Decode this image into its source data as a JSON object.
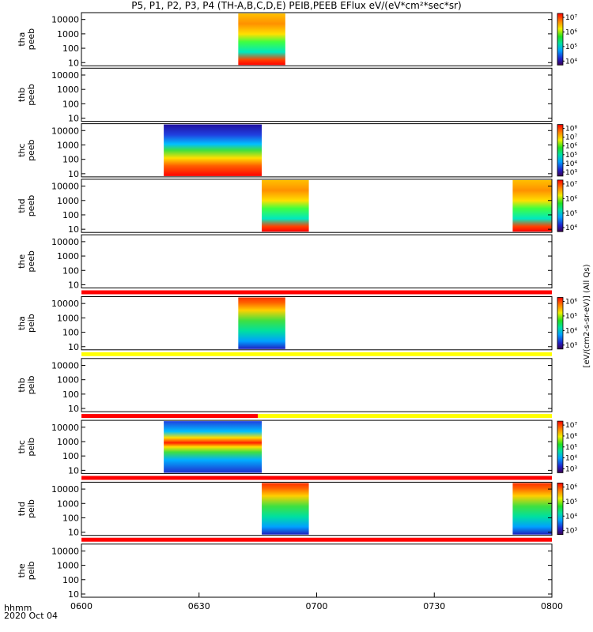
{
  "title": "P5, P1, P2, P3, P4 (TH-A,B,C,D,E) PEIB,PEEB EFlux eV/(eV*cm²*sec*sr)",
  "footer": {
    "time_label": "hhmm",
    "date_label": "2020 Oct 04"
  },
  "colors": {
    "frame": "#000000",
    "red_flag": "#ff0000",
    "yellow_flag": "#ffff00"
  },
  "chart_data": {
    "type": "heatmap",
    "x_unit": "hhmm",
    "xlim": [
      "0600",
      "0800"
    ],
    "x_ticks": [
      "0600",
      "0630",
      "0700",
      "0730",
      "0800"
    ],
    "y_scale": "log",
    "y_ticks": [
      "10",
      "100",
      "1000",
      "10000"
    ],
    "colormap": "rainbow",
    "side_label": "[eV/(cm2-s-sr-eV)] (All Qs)",
    "panels": [
      {
        "probe": "tha",
        "product": "peeb",
        "ylabel": [
          "tha",
          "peeb"
        ],
        "colorbar_ticks": [
          "10⁴",
          "10⁵",
          "10⁶",
          "10⁷"
        ],
        "coverage": [
          {
            "start": "0640",
            "end": "0652",
            "flux": "medium"
          }
        ]
      },
      {
        "probe": "thb",
        "product": "peeb",
        "ylabel": [
          "thb",
          "peeb"
        ],
        "colorbar_ticks": [],
        "coverage": []
      },
      {
        "probe": "thc",
        "product": "peeb",
        "ylabel": [
          "thc",
          "peeb"
        ],
        "colorbar_ticks": [
          "10³",
          "10⁴",
          "10⁵",
          "10⁶",
          "10⁷",
          "10⁸"
        ],
        "coverage": [
          {
            "start": "0621",
            "end": "0646",
            "flux": "high"
          }
        ]
      },
      {
        "probe": "thd",
        "product": "peeb",
        "ylabel": [
          "thd",
          "peeb"
        ],
        "colorbar_ticks": [
          "10⁴",
          "10⁵",
          "10⁶",
          "10⁷"
        ],
        "coverage": [
          {
            "start": "0646",
            "end": "0658",
            "flux": "medium"
          },
          {
            "start": "0750",
            "end": "0800",
            "flux": "medium"
          }
        ]
      },
      {
        "probe": "the",
        "product": "peeb",
        "ylabel": [
          "the",
          "peeb"
        ],
        "colorbar_ticks": [],
        "coverage": []
      },
      {
        "probe": "tha",
        "product": "peib",
        "ylabel": [
          "tha",
          "peib"
        ],
        "colorbar_ticks": [
          "10³",
          "10⁴",
          "10⁵",
          "10⁶"
        ],
        "coverage": [
          {
            "start": "0640",
            "end": "0652",
            "flux": "ion"
          }
        ]
      },
      {
        "probe": "thb",
        "product": "peib",
        "ylabel": [
          "thb",
          "peib"
        ],
        "colorbar_ticks": [],
        "coverage": []
      },
      {
        "probe": "thc",
        "product": "peib",
        "ylabel": [
          "thc",
          "peib"
        ],
        "colorbar_ticks": [
          "10³",
          "10⁴",
          "10⁵",
          "10⁶",
          "10⁷"
        ],
        "coverage": [
          {
            "start": "0621",
            "end": "0646",
            "flux": "ion_high"
          }
        ]
      },
      {
        "probe": "thd",
        "product": "peib",
        "ylabel": [
          "thd",
          "peib"
        ],
        "colorbar_ticks": [
          "10³",
          "10⁴",
          "10⁵",
          "10⁶"
        ],
        "coverage": [
          {
            "start": "0646",
            "end": "0658",
            "flux": "ion"
          },
          {
            "start": "0750",
            "end": "0800",
            "flux": "ion"
          }
        ]
      },
      {
        "probe": "the",
        "product": "peib",
        "ylabel": [
          "the",
          "peib"
        ],
        "colorbar_ticks": [],
        "coverage": []
      }
    ],
    "flag_bars": [
      {
        "after_panel": 4,
        "segments": [
          {
            "start": "0600",
            "end": "0800",
            "color": "red"
          }
        ]
      },
      {
        "after_panel": 5,
        "segments": [
          {
            "start": "0600",
            "end": "0800",
            "color": "yellow"
          }
        ]
      },
      {
        "after_panel": 6,
        "segments": [
          {
            "start": "0600",
            "end": "0645",
            "color": "red"
          },
          {
            "start": "0645",
            "end": "0800",
            "color": "yellow"
          }
        ]
      },
      {
        "after_panel": 7,
        "segments": [
          {
            "start": "0600",
            "end": "0800",
            "color": "red"
          }
        ]
      },
      {
        "after_panel": 8,
        "segments": [
          {
            "start": "0600",
            "end": "0800",
            "color": "red"
          }
        ]
      }
    ]
  }
}
